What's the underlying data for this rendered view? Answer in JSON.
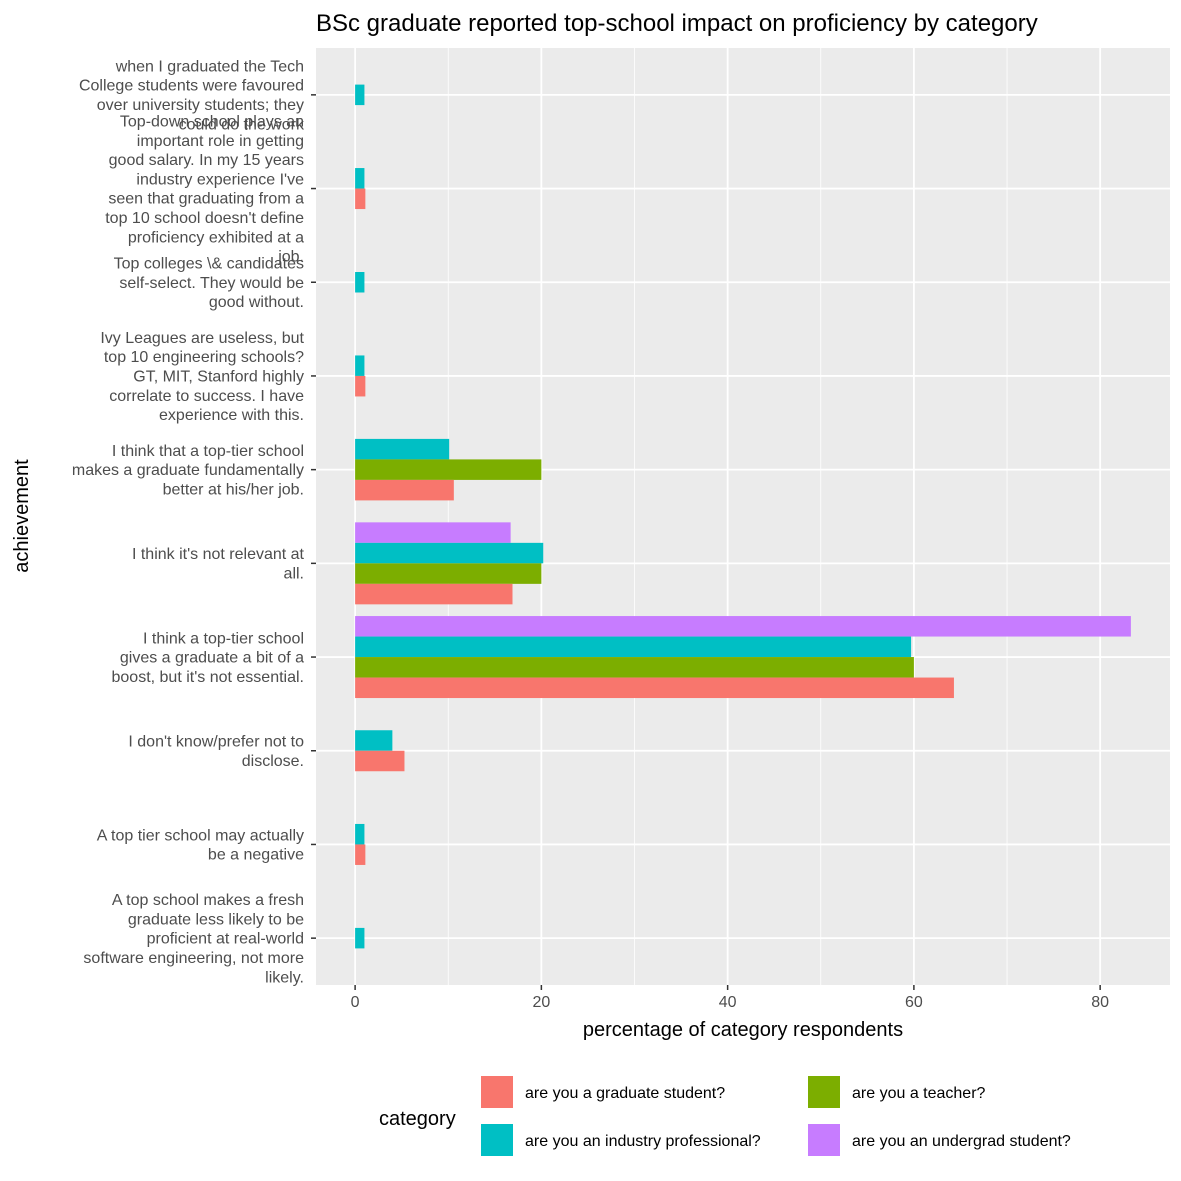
{
  "chart_data": {
    "type": "bar",
    "orientation": "horizontal",
    "title": "BSc graduate reported top-school impact on proficiency by category",
    "xlabel": "percentage of category respondents",
    "ylabel": "achievement",
    "xlim": [
      -4.2,
      87.5
    ],
    "x_ticks": [
      0,
      20,
      40,
      60,
      80
    ],
    "grid": true,
    "legend_position": "bottom",
    "legend_title": "category",
    "series": [
      {
        "name": "are you a graduate student?",
        "color": "#F8766D"
      },
      {
        "name": "are you a teacher?",
        "color": "#7CAE00"
      },
      {
        "name": "are you an industry professional?",
        "color": "#00BFC4"
      },
      {
        "name": "are you an undergrad student?",
        "color": "#C77CFF"
      }
    ],
    "categories": [
      {
        "label_lines": [
          "when I graduated the Tech",
          "College students were favoured",
          "over university students; they",
          "could do the work"
        ],
        "bars": [
          {
            "series": 2,
            "value": 1.0
          }
        ]
      },
      {
        "label_lines": [
          "Top-down school plays an",
          "important role in getting",
          "good salary. In my 15 years",
          "industry experience I've",
          "seen that graduating from a",
          "top 10 school doesn't define",
          "proficiency exhibited at a",
          "job."
        ],
        "bars": [
          {
            "series": 2,
            "value": 1.0
          },
          {
            "series": 0,
            "value": 1.1
          }
        ]
      },
      {
        "label_lines": [
          "Top colleges \\& candidates",
          "self-select. They would be",
          "good without."
        ],
        "bars": [
          {
            "series": 2,
            "value": 1.0
          }
        ]
      },
      {
        "label_lines": [
          "Ivy Leagues are useless, but",
          "top 10 engineering schools?",
          "GT, MIT, Stanford highly",
          "correlate to success. I have",
          "experience with this."
        ],
        "bars": [
          {
            "series": 2,
            "value": 1.0
          },
          {
            "series": 0,
            "value": 1.1
          }
        ]
      },
      {
        "label_lines": [
          "I think that a top-tier school",
          "makes a graduate fundamentally",
          "better at his/her job."
        ],
        "bars": [
          {
            "series": 2,
            "value": 10.1
          },
          {
            "series": 1,
            "value": 20.0
          },
          {
            "series": 0,
            "value": 10.6
          }
        ]
      },
      {
        "label_lines": [
          "I think it's not relevant at",
          "all."
        ],
        "bars": [
          {
            "series": 3,
            "value": 16.7
          },
          {
            "series": 2,
            "value": 20.2
          },
          {
            "series": 1,
            "value": 20.0
          },
          {
            "series": 0,
            "value": 16.9
          }
        ]
      },
      {
        "label_lines": [
          "I think a top-tier school",
          "gives a graduate a bit of a",
          "boost, but it's not essential."
        ],
        "bars": [
          {
            "series": 3,
            "value": 83.3
          },
          {
            "series": 2,
            "value": 59.7
          },
          {
            "series": 1,
            "value": 60.0
          },
          {
            "series": 0,
            "value": 64.3
          }
        ]
      },
      {
        "label_lines": [
          "I don't know/prefer not to",
          "disclose."
        ],
        "bars": [
          {
            "series": 2,
            "value": 4.0
          },
          {
            "series": 0,
            "value": 5.3
          }
        ]
      },
      {
        "label_lines": [
          "A top tier school may actually",
          "be a negative"
        ],
        "bars": [
          {
            "series": 2,
            "value": 1.0
          },
          {
            "series": 0,
            "value": 1.1
          }
        ]
      },
      {
        "label_lines": [
          "A top school makes a fresh",
          "graduate less likely to be",
          "proficient at real-world",
          "software engineering, not more",
          "likely."
        ],
        "bars": [
          {
            "series": 2,
            "value": 1.0
          }
        ]
      }
    ]
  }
}
